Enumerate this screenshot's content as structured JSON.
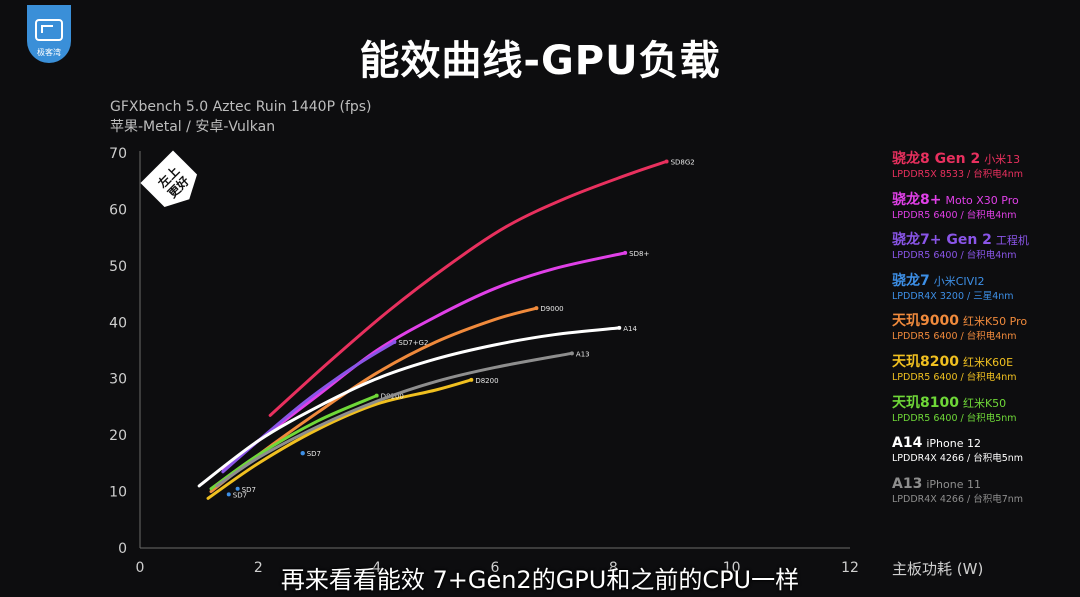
{
  "brand": {
    "logo_text": "极客湾"
  },
  "chart_data": {
    "type": "line",
    "title": "能效曲线-GPU负载",
    "subtitle_lines": [
      "GFXbench 5.0 Aztec Ruin 1440P (fps)",
      "苹果-Metal / 安卓-Vulkan"
    ],
    "xlabel": "主板功耗 (W)",
    "xlim": [
      0,
      12
    ],
    "ylim": [
      0,
      70
    ],
    "xticks": [
      "0",
      "2",
      "4",
      "6",
      "8",
      "10",
      "12"
    ],
    "yticks": [
      "0",
      "10",
      "20",
      "30",
      "40",
      "50",
      "60",
      "70"
    ],
    "badge_lines": [
      "左上",
      "更好"
    ],
    "grid": false,
    "legend_position": "right",
    "series": [
      {
        "name": "骁龙8 Gen 2",
        "device": "小米13",
        "spec": "LPDDR5X 8533 / 台积电4nm",
        "label": "SD8G2",
        "color": "#e8305e",
        "points": [
          [
            2.2,
            23.5
          ],
          [
            3.2,
            33
          ],
          [
            4.2,
            42
          ],
          [
            5.2,
            50
          ],
          [
            6.2,
            57
          ],
          [
            7.2,
            62
          ],
          [
            8.2,
            66
          ],
          [
            8.9,
            68.5
          ]
        ]
      },
      {
        "name": "骁龙8+",
        "device": "Moto X30 Pro",
        "spec": "LPDDR5 6400 / 台积电4nm",
        "label": "SD8+",
        "color": "#e040e8",
        "points": [
          [
            1.4,
            14
          ],
          [
            2,
            19
          ],
          [
            3,
            27
          ],
          [
            4,
            35
          ],
          [
            5,
            41
          ],
          [
            6,
            46
          ],
          [
            7,
            49.5
          ],
          [
            8.2,
            52.3
          ]
        ]
      },
      {
        "name": "骁龙7+ Gen 2",
        "device": "工程机",
        "spec": "LPDDR5 6400 / 台积电4nm",
        "label": "SD7+G2",
        "color": "#8a55e8",
        "points": [
          [
            1.4,
            13.5
          ],
          [
            2,
            19
          ],
          [
            2.8,
            26
          ],
          [
            3.6,
            32
          ],
          [
            4.3,
            36.5
          ]
        ]
      },
      {
        "name": "骁龙7",
        "device": "小米CIVI2",
        "spec": "LPDDR4X 3200 / 三星4nm",
        "label": "SD7",
        "color": "#3d8fe6",
        "points": [
          [
            2.75,
            16.8
          ]
        ]
      },
      {
        "name": "天玑9000",
        "device": "红米K50 Pro",
        "spec": "LPDDR5 6400 / 台积电4nm",
        "label": "D9000",
        "color": "#f08a3c",
        "points": [
          [
            1.2,
            10
          ],
          [
            2,
            16.5
          ],
          [
            3,
            24
          ],
          [
            4,
            31
          ],
          [
            5,
            36.5
          ],
          [
            6,
            40.5
          ],
          [
            6.7,
            42.5
          ]
        ]
      },
      {
        "name": "天玑8200",
        "device": "红米K60E",
        "spec": "LPDDR5 6400 / 台积电4nm",
        "label": "D8200",
        "color": "#f0c020",
        "points": [
          [
            1.15,
            8.8
          ],
          [
            2,
            15
          ],
          [
            3,
            21
          ],
          [
            4,
            25.5
          ],
          [
            5,
            28
          ],
          [
            5.6,
            29.8
          ]
        ]
      },
      {
        "name": "天玑8100",
        "device": "红米K50",
        "spec": "LPDDR5 6400 / 台积电5nm",
        "label": "D8100",
        "color": "#6fd838",
        "points": [
          [
            1.2,
            10.5
          ],
          [
            2,
            16.5
          ],
          [
            3,
            22.5
          ],
          [
            4,
            27
          ]
        ]
      },
      {
        "name": "A14",
        "device": "iPhone 12",
        "spec": "LPDDR4X 4266 / 台积电5nm",
        "label": "A14",
        "color": "#ffffff",
        "points": [
          [
            1,
            11
          ],
          [
            2,
            19
          ],
          [
            3,
            25
          ],
          [
            4,
            30
          ],
          [
            5,
            33.5
          ],
          [
            6,
            36
          ],
          [
            7,
            37.8
          ],
          [
            8.1,
            39
          ]
        ]
      },
      {
        "name": "A13",
        "device": "iPhone 11",
        "spec": "LPDDR4X 4266 / 台积电7nm",
        "label": "A13",
        "color": "#8e8e8e",
        "points": [
          [
            1.3,
            11
          ],
          [
            2,
            16
          ],
          [
            3,
            21.5
          ],
          [
            4,
            26
          ],
          [
            5,
            29.5
          ],
          [
            6,
            32
          ],
          [
            7.3,
            34.5
          ]
        ]
      }
    ],
    "extra_points": [
      {
        "label": "SD7",
        "x": 1.5,
        "y": 9.5,
        "color": "#3d8fe6"
      },
      {
        "label": "SD7",
        "x": 1.65,
        "y": 10.5,
        "color": "#3d8fe6"
      }
    ]
  },
  "caption": "再来看看能效 7+Gen2的GPU和之前的CPU一样"
}
